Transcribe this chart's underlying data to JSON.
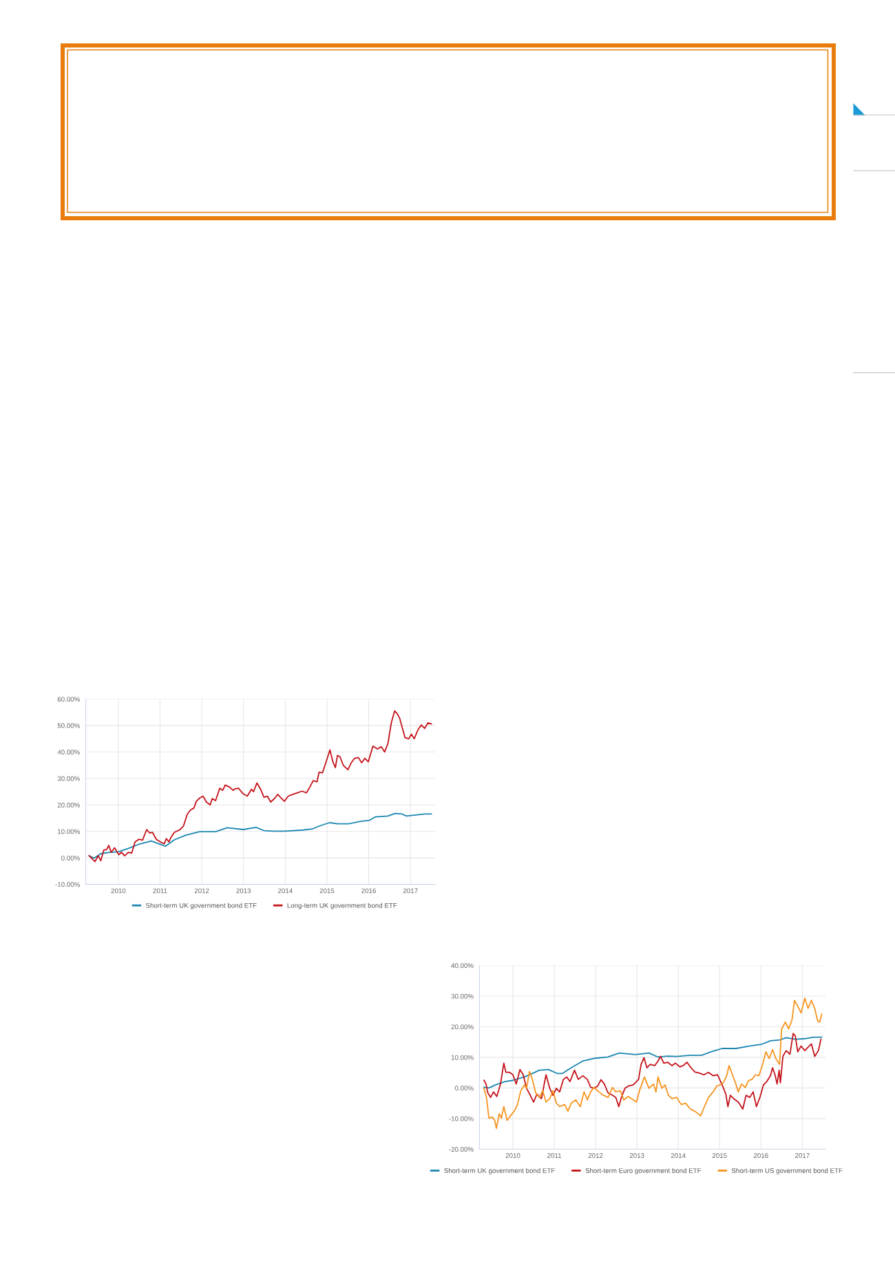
{
  "chart_data": [
    {
      "type": "line",
      "xlim": [
        2009.22,
        2017.59
      ],
      "xticks": [
        2010,
        2011,
        2012,
        2013,
        2014,
        2015,
        2016,
        2017
      ],
      "ylim": [
        -10,
        60
      ],
      "yticks": [
        {
          "value": -10,
          "label": "-10.00%"
        },
        {
          "value": 0,
          "label": "0.00%"
        },
        {
          "value": 10,
          "label": "10.00%"
        },
        {
          "value": 20,
          "label": "20.00%"
        },
        {
          "value": 30,
          "label": "30.00%"
        },
        {
          "value": 40,
          "label": "40.00%"
        },
        {
          "value": 50,
          "label": "50.00%"
        },
        {
          "value": 60,
          "label": "60.00%"
        }
      ],
      "grid": true,
      "legend": "bottom",
      "series": [
        {
          "name": "Short-term UK government bond ETF",
          "color": "#1a86b0",
          "x": [
            2009.3,
            2009.42,
            2009.58,
            2009.8,
            2010.0,
            2010.24,
            2010.52,
            2010.79,
            2011.01,
            2011.13,
            2011.34,
            2011.62,
            2011.95,
            2012.33,
            2012.61,
            2012.99,
            2013.3,
            2013.49,
            2013.71,
            2013.98,
            2014.42,
            2014.65,
            2014.81,
            2015.06,
            2015.25,
            2015.53,
            2015.8,
            2016.02,
            2016.16,
            2016.46,
            2016.63,
            2016.79,
            2016.9,
            2017.12,
            2017.34,
            2017.5
          ],
          "values": [
            0.8,
            -0.1,
            1.6,
            2.1,
            2.3,
            3.6,
            5.3,
            6.4,
            5.1,
            4.4,
            6.8,
            8.6,
            9.9,
            9.9,
            11.4,
            10.7,
            11.5,
            10.3,
            10.1,
            10.1,
            10.5,
            10.9,
            12.0,
            13.3,
            12.9,
            12.9,
            13.8,
            14.2,
            15.5,
            15.8,
            16.8,
            16.6,
            15.8,
            16.2,
            16.6,
            16.6
          ]
        },
        {
          "name": "Long-term UK government bond ETF",
          "color": "#c4121a",
          "x": [
            2009.3,
            2009.36,
            2009.44,
            2009.52,
            2009.58,
            2009.65,
            2009.72,
            2009.77,
            2009.83,
            2009.91,
            2010.01,
            2010.08,
            2010.15,
            2010.24,
            2010.32,
            2010.4,
            2010.49,
            2010.58,
            2010.68,
            2010.75,
            2010.82,
            2010.91,
            2011.01,
            2011.1,
            2011.15,
            2011.21,
            2011.26,
            2011.34,
            2011.48,
            2011.56,
            2011.65,
            2011.73,
            2011.81,
            2011.87,
            2011.95,
            2012.03,
            2012.11,
            2012.2,
            2012.25,
            2012.33,
            2012.43,
            2012.5,
            2012.56,
            2012.66,
            2012.75,
            2012.8,
            2012.88,
            2012.99,
            2013.09,
            2013.19,
            2013.24,
            2013.32,
            2013.41,
            2013.49,
            2013.57,
            2013.65,
            2013.74,
            2013.82,
            2013.9,
            2013.98,
            2014.07,
            2014.18,
            2014.29,
            2014.4,
            2014.51,
            2014.59,
            2014.67,
            2014.76,
            2014.81,
            2014.89,
            2014.98,
            2015.07,
            2015.14,
            2015.2,
            2015.25,
            2015.31,
            2015.39,
            2015.5,
            2015.58,
            2015.66,
            2015.75,
            2015.83,
            2015.91,
            2015.99,
            2016.1,
            2016.21,
            2016.3,
            2016.38,
            2016.46,
            2016.54,
            2016.62,
            2016.68,
            2016.74,
            2016.8,
            2016.87,
            2016.96,
            2017.02,
            2017.09,
            2017.18,
            2017.26,
            2017.34,
            2017.42,
            2017.5
          ],
          "values": [
            0.8,
            -0.1,
            -1.4,
            0.8,
            -1.1,
            2.9,
            3.2,
            4.7,
            2.1,
            3.8,
            1.2,
            2.1,
            0.8,
            2.1,
            1.8,
            6.0,
            7.0,
            6.7,
            10.7,
            9.4,
            9.6,
            7.0,
            6.0,
            5.3,
            7.3,
            6.0,
            7.7,
            9.6,
            10.7,
            12.0,
            16.4,
            18.1,
            18.8,
            21.4,
            22.6,
            23.3,
            21.1,
            20.0,
            22.4,
            21.6,
            26.3,
            25.5,
            27.5,
            26.8,
            25.5,
            26.1,
            26.3,
            24.2,
            23.3,
            25.9,
            25.0,
            28.3,
            25.9,
            22.9,
            23.3,
            21.1,
            22.4,
            24.0,
            22.6,
            21.4,
            23.3,
            24.0,
            24.6,
            25.2,
            24.6,
            26.8,
            29.2,
            28.7,
            32.4,
            32.1,
            36.3,
            40.8,
            36.3,
            34.1,
            38.7,
            38.2,
            35.0,
            33.3,
            35.9,
            37.6,
            37.9,
            35.9,
            37.6,
            36.3,
            42.2,
            41.1,
            42.0,
            40.0,
            43.2,
            51.0,
            55.5,
            54.5,
            52.8,
            49.3,
            45.4,
            45.0,
            46.7,
            45.0,
            48.4,
            50.2,
            48.9,
            51.0,
            50.6
          ]
        }
      ]
    },
    {
      "type": "line",
      "xlim": [
        2009.19,
        2017.56
      ],
      "xticks": [
        2010,
        2011,
        2012,
        2013,
        2014,
        2015,
        2016,
        2017
      ],
      "ylim": [
        -20,
        40
      ],
      "yticks": [
        {
          "value": -20,
          "label": "-20.00%"
        },
        {
          "value": -10,
          "label": "-10.00%"
        },
        {
          "value": 0,
          "label": "0.00%"
        },
        {
          "value": 10,
          "label": "10.00%"
        },
        {
          "value": 20,
          "label": "20.00%"
        },
        {
          "value": 30,
          "label": "30.00%"
        },
        {
          "value": 40,
          "label": "40.00%"
        }
      ],
      "grid": true,
      "legend": "bottom",
      "series": [
        {
          "name": "Short-term UK government bond ETF",
          "color": "#1a86b0",
          "x": [
            2009.3,
            2009.42,
            2009.58,
            2009.81,
            2010.0,
            2010.3,
            2010.64,
            2010.86,
            2011.08,
            2011.19,
            2011.41,
            2011.69,
            2011.99,
            2012.3,
            2012.57,
            2012.96,
            2013.29,
            2013.51,
            2013.74,
            2013.96,
            2014.29,
            2014.57,
            2014.79,
            2015.06,
            2015.4,
            2015.73,
            2016.0,
            2016.23,
            2016.45,
            2016.61,
            2016.83,
            2017.06,
            2017.28,
            2017.47
          ],
          "values": [
            0.2,
            0.0,
            1.0,
            2.1,
            2.5,
            3.7,
            5.8,
            6.0,
            4.7,
            4.7,
            6.6,
            8.8,
            9.7,
            10.1,
            11.4,
            10.9,
            11.4,
            10.1,
            10.4,
            10.3,
            10.7,
            10.7,
            11.8,
            12.9,
            12.9,
            13.7,
            14.2,
            15.4,
            15.7,
            16.4,
            15.9,
            16.1,
            16.6,
            16.6
          ]
        },
        {
          "name": "Short-term Euro government bond ETF",
          "color": "#c4121a",
          "x": [
            2009.3,
            2009.35,
            2009.39,
            2009.46,
            2009.53,
            2009.61,
            2009.7,
            2009.78,
            2009.83,
            2009.92,
            2010.0,
            2010.08,
            2010.17,
            2010.25,
            2010.33,
            2010.42,
            2010.5,
            2010.58,
            2010.69,
            2010.8,
            2010.89,
            2010.97,
            2011.05,
            2011.13,
            2011.22,
            2011.3,
            2011.38,
            2011.49,
            2011.58,
            2011.69,
            2011.8,
            2011.88,
            2011.96,
            2012.05,
            2012.13,
            2012.21,
            2012.3,
            2012.41,
            2012.49,
            2012.56,
            2012.63,
            2012.71,
            2012.79,
            2012.91,
            2012.96,
            2013.04,
            2013.1,
            2013.17,
            2013.24,
            2013.32,
            2013.43,
            2013.51,
            2013.57,
            2013.65,
            2013.74,
            2013.85,
            2013.93,
            2014.04,
            2014.12,
            2014.21,
            2014.29,
            2014.4,
            2014.54,
            2014.62,
            2014.73,
            2014.84,
            2014.95,
            2015.06,
            2015.15,
            2015.2,
            2015.26,
            2015.34,
            2015.45,
            2015.56,
            2015.64,
            2015.73,
            2015.81,
            2015.89,
            2015.98,
            2016.06,
            2016.14,
            2016.23,
            2016.28,
            2016.34,
            2016.39,
            2016.44,
            2016.47,
            2016.53,
            2016.61,
            2016.7,
            2016.78,
            2016.83,
            2016.89,
            2016.97,
            2017.06,
            2017.14,
            2017.22,
            2017.3,
            2017.39,
            2017.45
          ],
          "values": [
            2.5,
            1.3,
            -1.5,
            -3.1,
            -1.3,
            -2.8,
            1.3,
            8.1,
            5.1,
            5.1,
            4.3,
            1.3,
            6.0,
            4.3,
            -0.1,
            -2.4,
            -4.6,
            -2.0,
            -3.5,
            4.3,
            -0.1,
            -2.4,
            -0.1,
            -1.3,
            2.8,
            3.6,
            2.1,
            5.8,
            2.8,
            4.0,
            2.8,
            0.2,
            -0.1,
            0.6,
            2.7,
            1.3,
            -1.6,
            -2.4,
            -3.1,
            -6.1,
            -2.8,
            -0.1,
            0.6,
            1.0,
            1.7,
            2.8,
            7.7,
            9.9,
            6.6,
            7.7,
            7.3,
            8.8,
            10.3,
            8.1,
            8.4,
            7.3,
            8.1,
            6.9,
            7.3,
            8.4,
            6.9,
            5.2,
            4.7,
            4.3,
            5.1,
            4.0,
            4.3,
            1.0,
            -2.0,
            -6.1,
            -2.4,
            -3.5,
            -4.6,
            -6.9,
            -2.4,
            -3.1,
            -1.3,
            -6.1,
            -2.8,
            1.0,
            2.1,
            4.0,
            6.6,
            4.3,
            1.3,
            5.8,
            1.7,
            10.3,
            12.2,
            11.0,
            17.8,
            17.0,
            11.8,
            13.7,
            12.2,
            13.3,
            14.4,
            10.3,
            12.2,
            15.9
          ]
        },
        {
          "name": "Short-term US government bond ETF",
          "color": "#f7931e",
          "x": [
            2009.3,
            2009.36,
            2009.42,
            2009.5,
            2009.56,
            2009.6,
            2009.67,
            2009.72,
            2009.78,
            2009.86,
            2009.94,
            2010.03,
            2010.11,
            2010.19,
            2010.28,
            2010.33,
            2010.4,
            2010.47,
            2010.55,
            2010.64,
            2010.72,
            2010.8,
            2010.89,
            2010.97,
            2011.05,
            2011.13,
            2011.25,
            2011.33,
            2011.41,
            2011.52,
            2011.63,
            2011.72,
            2011.8,
            2011.88,
            2011.96,
            2012.08,
            2012.19,
            2012.3,
            2012.41,
            2012.49,
            2012.6,
            2012.68,
            2012.79,
            2012.91,
            2012.99,
            2013.07,
            2013.18,
            2013.29,
            2013.4,
            2013.46,
            2013.51,
            2013.6,
            2013.68,
            2013.76,
            2013.85,
            2013.96,
            2014.07,
            2014.18,
            2014.29,
            2014.4,
            2014.54,
            2014.62,
            2014.73,
            2014.84,
            2014.93,
            2015.01,
            2015.09,
            2015.17,
            2015.23,
            2015.31,
            2015.4,
            2015.45,
            2015.53,
            2015.62,
            2015.7,
            2015.78,
            2015.87,
            2015.95,
            2016.03,
            2016.12,
            2016.2,
            2016.28,
            2016.36,
            2016.45,
            2016.5,
            2016.59,
            2016.67,
            2016.75,
            2016.81,
            2016.89,
            2016.97,
            2017.06,
            2017.14,
            2017.22,
            2017.3,
            2017.37,
            2017.42,
            2017.47
          ],
          "values": [
            -0.1,
            -3.1,
            -9.9,
            -9.5,
            -10.6,
            -13.2,
            -8.4,
            -9.9,
            -6.1,
            -10.6,
            -9.1,
            -7.6,
            -5.4,
            -0.9,
            1.0,
            -0.1,
            5.4,
            2.8,
            -1.6,
            -3.1,
            -0.9,
            -4.6,
            -3.5,
            -0.9,
            -5.0,
            -6.1,
            -5.4,
            -7.6,
            -5.0,
            -3.9,
            -6.1,
            -1.3,
            -3.9,
            -1.3,
            0.2,
            -1.3,
            -2.4,
            -3.1,
            0.2,
            -1.3,
            -0.9,
            -3.9,
            -2.8,
            -3.9,
            -4.6,
            -0.5,
            3.6,
            -0.1,
            1.3,
            -1.3,
            3.6,
            -0.1,
            1.0,
            -2.4,
            -3.5,
            -3.1,
            -5.4,
            -5.0,
            -6.9,
            -7.6,
            -9.1,
            -6.5,
            -3.1,
            -1.3,
            0.6,
            1.0,
            1.7,
            4.0,
            7.3,
            4.3,
            1.0,
            -1.3,
            1.3,
            0.2,
            2.4,
            2.8,
            4.3,
            4.0,
            7.3,
            11.8,
            9.6,
            12.5,
            9.6,
            7.7,
            19.3,
            21.5,
            19.3,
            22.2,
            28.6,
            26.7,
            24.5,
            29.3,
            26.0,
            28.6,
            26.0,
            21.9,
            21.5,
            24.1
          ]
        }
      ]
    }
  ]
}
